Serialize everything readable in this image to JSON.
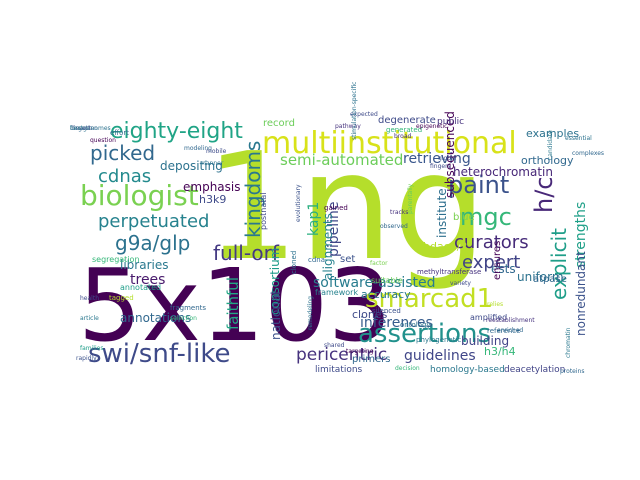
{
  "words": [
    {
      "text": "1ng",
      "color": "#b5de2b"
    },
    {
      "text": "5x103",
      "color": "#440154"
    },
    {
      "text": "multiinstitutional",
      "color": "#d8e219"
    },
    {
      "text": "biologist",
      "color": "#7ad151"
    },
    {
      "text": "assertions",
      "color": "#21918c"
    },
    {
      "text": "swi/snf-like",
      "color": "#3e4a89"
    },
    {
      "text": "smarcad1",
      "color": "#c2df23"
    },
    {
      "text": "eighty-eight",
      "color": "#20a486"
    },
    {
      "text": "paint",
      "color": "#3b528b"
    },
    {
      "text": "h/c",
      "color": "#482878"
    },
    {
      "text": "mgc",
      "color": "#35b779"
    },
    {
      "text": "picked",
      "color": "#31688e"
    },
    {
      "text": "kingdoms",
      "color": "#2a788e"
    },
    {
      "text": "g9a/glp",
      "color": "#2c728e"
    },
    {
      "text": "perpetuated",
      "color": "#26828e"
    },
    {
      "text": "full-orf",
      "color": "#443983"
    },
    {
      "text": "explicit",
      "color": "#1f9e89"
    },
    {
      "text": "curators",
      "color": "#472c7a"
    },
    {
      "text": "expert",
      "color": "#414487"
    },
    {
      "text": "semi-automated",
      "color": "#6ccd5a"
    },
    {
      "text": "cdnas",
      "color": "#238a8d"
    },
    {
      "text": "pericentric",
      "color": "#46327e"
    },
    {
      "text": "software-assisted",
      "color": "#287c8e"
    },
    {
      "text": "inferences",
      "color": "#365c8d"
    },
    {
      "text": "guidelines",
      "color": "#404688"
    },
    {
      "text": "retrieving",
      "color": "#39568c"
    },
    {
      "text": "trees",
      "color": "#481a6c"
    },
    {
      "text": "faithful",
      "color": "#22a785"
    },
    {
      "text": "kap1",
      "color": "#29af7f"
    },
    {
      "text": "pipeline",
      "color": "#3f4788"
    },
    {
      "text": "institute",
      "color": "#2e6f8e"
    },
    {
      "text": "strengths",
      "color": "#1fa088"
    },
    {
      "text": "nonredundant",
      "color": "#3b528b"
    },
    {
      "text": "annotations",
      "color": "#31688e"
    },
    {
      "text": "libraries",
      "color": "#2a788e"
    },
    {
      "text": "emphasis",
      "color": "#440154"
    },
    {
      "text": "depositing",
      "color": "#2c728e"
    },
    {
      "text": "h3k9",
      "color": "#3e4a89"
    },
    {
      "text": "consortium",
      "color": "#1e9b8a"
    },
    {
      "text": "alignments",
      "color": "#26828e"
    },
    {
      "text": "national",
      "color": "#3b528b"
    },
    {
      "text": "building",
      "color": "#414487"
    },
    {
      "text": "uniform",
      "color": "#2c728e"
    },
    {
      "text": "ests",
      "color": "#31688e"
    },
    {
      "text": "hdac1/2",
      "color": "#b5de2b"
    },
    {
      "text": "h3/h4",
      "color": "#35b779"
    },
    {
      "text": "clones",
      "color": "#3e4a89"
    },
    {
      "text": "accuracy",
      "color": "#2a788e"
    },
    {
      "text": "heterochromatin",
      "color": "#482878"
    },
    {
      "text": "subsequenced",
      "color": "#440154"
    },
    {
      "text": "orthology",
      "color": "#31688e"
    },
    {
      "text": "examples",
      "color": "#2c728e"
    },
    {
      "text": "record",
      "color": "#6ccd5a"
    },
    {
      "text": "degenerate",
      "color": "#3e4a89"
    },
    {
      "text": "public",
      "color": "#46327e"
    },
    {
      "text": "primers",
      "color": "#31688e"
    },
    {
      "text": "set",
      "color": "#3b528b"
    },
    {
      "text": "blue",
      "color": "#7ad151"
    },
    {
      "text": "ensures",
      "color": "#440154"
    },
    {
      "text": "atpase",
      "color": "#31688e"
    },
    {
      "text": "limitations",
      "color": "#3e4a89"
    },
    {
      "text": "homology-based",
      "color": "#2a788e"
    },
    {
      "text": "deacetylation",
      "color": "#414487"
    },
    {
      "text": "framework",
      "color": "#26828e"
    },
    {
      "text": "segregation",
      "color": "#35b779"
    },
    {
      "text": "annotated",
      "color": "#1f9e89"
    },
    {
      "text": "cdna",
      "color": "#31688e"
    },
    {
      "text": "postnatal",
      "color": "#3e4a89"
    },
    {
      "text": "cloned",
      "color": "#2c728e"
    },
    {
      "text": "gained",
      "color": "#440154"
    },
    {
      "text": "suitable",
      "color": "#6ccd5a"
    },
    {
      "text": "tagged",
      "color": "#b5de2b"
    },
    {
      "text": "methyltransferase",
      "color": "#46327e"
    },
    {
      "text": "fragments",
      "color": "#31688e"
    },
    {
      "text": "silenced",
      "color": "#3b528b"
    },
    {
      "text": "phylogenetic",
      "color": "#2a788e"
    },
    {
      "text": "amplified",
      "color": "#3e4a89"
    },
    {
      "text": "ontology",
      "color": "#2c728e"
    },
    {
      "text": "reference",
      "color": "#31688e"
    },
    {
      "text": "generated",
      "color": "#35b779"
    },
    {
      "text": "expected",
      "color": "#3e4a89"
    },
    {
      "text": "pathway",
      "color": "#46327e"
    },
    {
      "text": "genomes",
      "color": "#2c728e"
    },
    {
      "text": "effort",
      "color": "#31688e"
    },
    {
      "text": "question",
      "color": "#440154"
    },
    {
      "text": "health",
      "color": "#3e4a89"
    },
    {
      "text": "article",
      "color": "#2a788e"
    },
    {
      "text": "rapidly",
      "color": "#3b528b"
    },
    {
      "text": "families",
      "color": "#1f9e89"
    },
    {
      "text": "selection",
      "color": "#35b779"
    },
    {
      "text": "modeling",
      "color": "#31688e"
    },
    {
      "text": "mobile",
      "color": "#3e4a89"
    },
    {
      "text": "manner",
      "color": "#2c728e"
    },
    {
      "text": "factor",
      "color": "#7ad151"
    },
    {
      "text": "broad",
      "color": "#46327e"
    },
    {
      "text": "global",
      "color": "#3b528b"
    },
    {
      "text": "epigenetic",
      "color": "#440154"
    },
    {
      "text": "enriched",
      "color": "#31688e"
    },
    {
      "text": "candidate",
      "color": "#2a788e"
    },
    {
      "text": "fingers",
      "color": "#3e4a89"
    },
    {
      "text": "essential",
      "color": "#2c728e"
    },
    {
      "text": "complexes",
      "color": "#31688e"
    },
    {
      "text": "relies",
      "color": "#b5de2b"
    },
    {
      "text": "reestablishment",
      "color": "#46327e"
    },
    {
      "text": "parentally",
      "color": "#6ccd5a"
    },
    {
      "text": "evolutionary",
      "color": "#3b528b"
    },
    {
      "text": "observed",
      "color": "#31688e"
    },
    {
      "text": "remodeling",
      "color": "#2c728e"
    },
    {
      "text": "shared",
      "color": "#3e4a89"
    },
    {
      "text": "targeting",
      "color": "#440154"
    },
    {
      "text": "chromatin",
      "color": "#2a788e"
    },
    {
      "text": "proteins",
      "color": "#31688e"
    },
    {
      "text": "variety",
      "color": "#3e4a89"
    },
    {
      "text": "decision",
      "color": "#35b779"
    },
    {
      "text": "tracks",
      "color": "#46327e"
    },
    {
      "text": "stimulation-specific",
      "color": "#2c728e"
    },
    {
      "text": "forgotten",
      "color": "#31688e"
    },
    {
      "text": "dissect",
      "color": "#3b528b"
    },
    {
      "text": "best",
      "color": "#2a788e"
    }
  ]
}
